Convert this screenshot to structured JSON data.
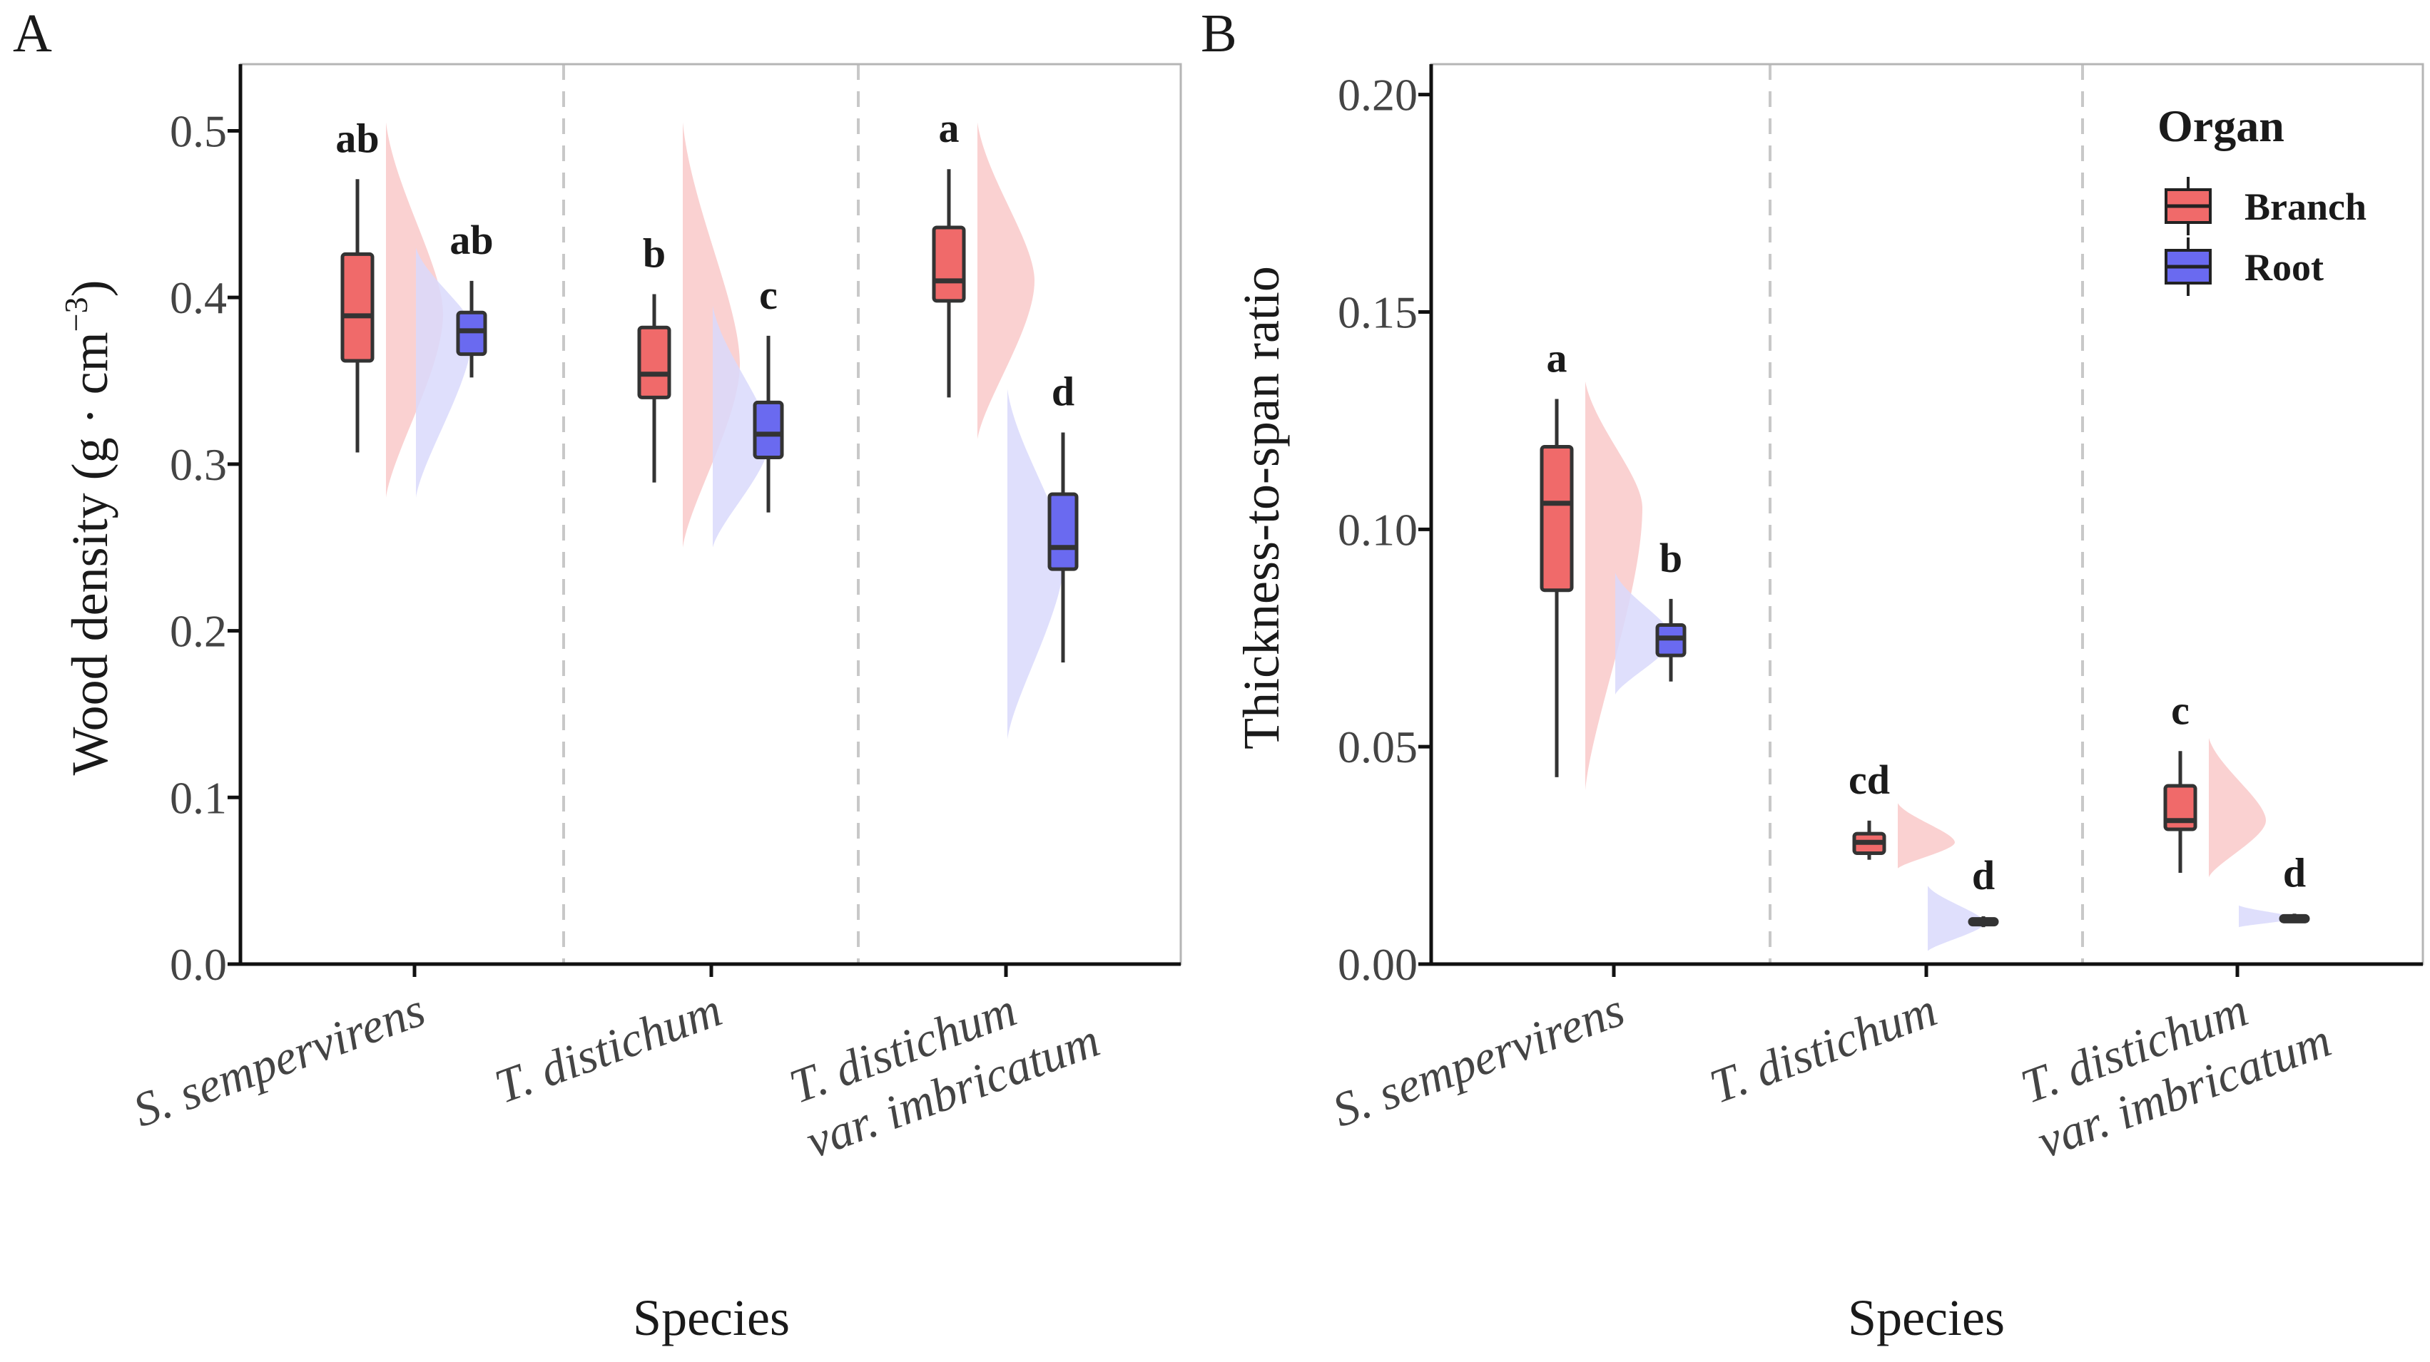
{
  "colors": {
    "branch": "#f06a6a",
    "root": "#6a6af0",
    "branch_violin": "#f9c9c9",
    "root_violin": "#d9d9fb",
    "divider": "#c8c8c8",
    "text": "#1a1a1a"
  },
  "chart_data": [
    {
      "type": "box-violin",
      "panel": "A",
      "xlabel": "Species",
      "ylabel": "Wood  density  (g · cm",
      "ylabel_sup": "−3",
      "ylabel_close": ")",
      "ylim": [
        0.0,
        0.54
      ],
      "ticks": [
        "0.0",
        "0.1",
        "0.2",
        "0.3",
        "0.4",
        "0.5"
      ],
      "tick_values": [
        0.0,
        0.1,
        0.2,
        0.3,
        0.4,
        0.5
      ],
      "categories": [
        {
          "line1": "S. sempervirens",
          "line2": ""
        },
        {
          "line1": "T. distichum",
          "line2": ""
        },
        {
          "line1": "T. distichum",
          "line2": "var. imbricatum"
        }
      ],
      "series": [
        {
          "name": "Branch",
          "boxes": [
            {
              "min": 0.307,
              "q1": 0.362,
              "median": 0.389,
              "q3": 0.426,
              "max": 0.471,
              "letter": "ab",
              "vmin": 0.28,
              "vmax": 0.505,
              "vpeak": 0.39
            },
            {
              "min": 0.289,
              "q1": 0.34,
              "median": 0.354,
              "q3": 0.382,
              "max": 0.402,
              "letter": "b",
              "vmin": 0.25,
              "vmax": 0.505,
              "vpeak": 0.36
            },
            {
              "min": 0.34,
              "q1": 0.398,
              "median": 0.41,
              "q3": 0.442,
              "max": 0.477,
              "letter": "a",
              "vmin": 0.315,
              "vmax": 0.505,
              "vpeak": 0.41
            }
          ]
        },
        {
          "name": "Root",
          "boxes": [
            {
              "min": 0.352,
              "q1": 0.366,
              "median": 0.38,
              "q3": 0.391,
              "max": 0.41,
              "letter": "ab",
              "vmin": 0.28,
              "vmax": 0.43,
              "vpeak": 0.38
            },
            {
              "min": 0.271,
              "q1": 0.304,
              "median": 0.318,
              "q3": 0.337,
              "max": 0.377,
              "letter": "c",
              "vmin": 0.25,
              "vmax": 0.395,
              "vpeak": 0.315
            },
            {
              "min": 0.181,
              "q1": 0.237,
              "median": 0.25,
              "q3": 0.282,
              "max": 0.319,
              "letter": "d",
              "vmin": 0.135,
              "vmax": 0.345,
              "vpeak": 0.245
            }
          ]
        }
      ]
    },
    {
      "type": "box-violin",
      "panel": "B",
      "xlabel": "Species",
      "ylabel": "Thickness-to-span ratio",
      "ylabel_sup": "",
      "ylabel_close": "",
      "ylim": [
        0.0,
        0.207
      ],
      "ticks": [
        "0.00",
        "0.05",
        "0.10",
        "0.15",
        "0.20"
      ],
      "tick_values": [
        0.0,
        0.05,
        0.1,
        0.15,
        0.2
      ],
      "categories": [
        {
          "line1": "S. sempervirens",
          "line2": ""
        },
        {
          "line1": "T. distichum",
          "line2": ""
        },
        {
          "line1": "T. distichum",
          "line2": "var. imbricatum"
        }
      ],
      "series": [
        {
          "name": "Branch",
          "boxes": [
            {
              "min": 0.043,
              "q1": 0.086,
              "median": 0.106,
              "q3": 0.119,
              "max": 0.13,
              "letter": "a",
              "vmin": 0.04,
              "vmax": 0.134,
              "vpeak": 0.105
            },
            {
              "min": 0.024,
              "q1": 0.0255,
              "median": 0.028,
              "q3": 0.03,
              "max": 0.033,
              "letter": "cd",
              "vmin": 0.022,
              "vmax": 0.037,
              "vpeak": 0.028
            },
            {
              "min": 0.021,
              "q1": 0.031,
              "median": 0.033,
              "q3": 0.041,
              "max": 0.049,
              "letter": "c",
              "vmin": 0.02,
              "vmax": 0.052,
              "vpeak": 0.033
            }
          ]
        },
        {
          "name": "Root",
          "boxes": [
            {
              "min": 0.065,
              "q1": 0.071,
              "median": 0.075,
              "q3": 0.078,
              "max": 0.084,
              "letter": "b",
              "vmin": 0.062,
              "vmax": 0.09,
              "vpeak": 0.075
            },
            {
              "min": 0.0085,
              "q1": 0.0092,
              "median": 0.0097,
              "q3": 0.0104,
              "max": 0.011,
              "letter": "d",
              "vmin": 0.003,
              "vmax": 0.018,
              "vpeak": 0.0095
            },
            {
              "min": 0.0095,
              "q1": 0.0101,
              "median": 0.0106,
              "q3": 0.0111,
              "max": 0.0116,
              "letter": "d",
              "vmin": 0.0085,
              "vmax": 0.0135,
              "vpeak": 0.0106
            }
          ]
        }
      ],
      "legend": {
        "title": "Organ",
        "position": "top-right",
        "entries": [
          "Branch",
          "Root"
        ]
      }
    }
  ]
}
